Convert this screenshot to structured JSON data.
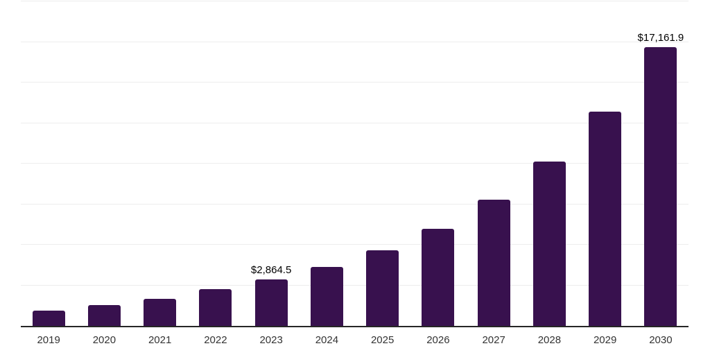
{
  "chart_data": {
    "type": "bar",
    "title": "",
    "xlabel": "",
    "ylabel": "",
    "categories": [
      "2019",
      "2020",
      "2021",
      "2022",
      "2023",
      "2024",
      "2025",
      "2026",
      "2027",
      "2028",
      "2029",
      "2030"
    ],
    "values": [
      950,
      1280,
      1660,
      2280,
      2864.5,
      3630,
      4650,
      5990,
      7780,
      10130,
      13200,
      17161.9
    ],
    "point_labels": [
      "",
      "",
      "",
      "",
      "$2,864.5",
      "",
      "",
      "",
      "",
      "",
      "",
      "$17,161.9"
    ],
    "ylim": [
      0,
      20000
    ],
    "y_step": 2500,
    "y_tick_labels_visible": false,
    "grid": "horizontal",
    "legend_position": "none",
    "colors": {
      "bar_fill": "#38114E",
      "axis_line": "#262626",
      "gridline": "#ededed",
      "tick_label": "#333333",
      "data_label": "#000000",
      "background": "#ffffff"
    }
  }
}
